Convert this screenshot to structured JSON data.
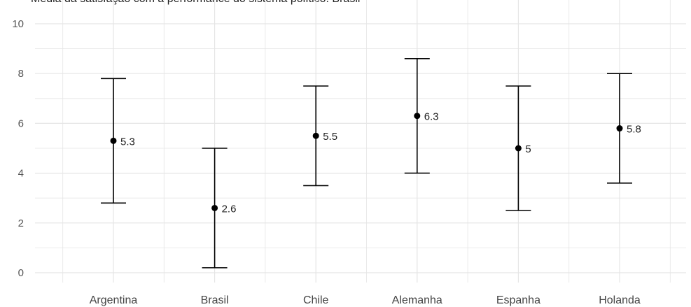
{
  "chart_data": {
    "type": "errorbar",
    "title": "Média da satisfação com a performance do sistema político: Brasil",
    "xlabel": "",
    "ylabel": "",
    "categories": [
      "Argentina",
      "Brasil",
      "Chile",
      "Alemanha",
      "Espanha",
      "Holanda"
    ],
    "series": [
      {
        "values": [
          5.3,
          2.6,
          5.5,
          6.3,
          5,
          5.8
        ],
        "lower": [
          2.8,
          0.2,
          3.5,
          4.0,
          2.5,
          3.6
        ],
        "upper": [
          7.8,
          5.0,
          7.5,
          8.6,
          7.5,
          8.0
        ],
        "labels": [
          "5.3",
          "2.6",
          "5.5",
          "6.3",
          "5",
          "5.8"
        ]
      }
    ],
    "yticks": [
      "0",
      "2",
      "4",
      "6",
      "8",
      "10"
    ],
    "ylim": [
      0,
      10
    ],
    "grid": true,
    "legend": "none",
    "colors": {
      "mark": "#000000",
      "grid": "#e5e5e5"
    }
  }
}
